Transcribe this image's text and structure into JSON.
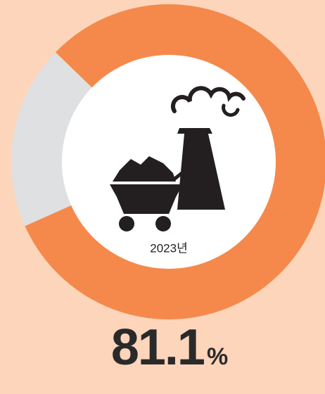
{
  "chart_data": {
    "type": "donut",
    "center_label": "2023년",
    "values": [
      81.1,
      18.9
    ],
    "value_labels": [
      "81.1%",
      null
    ],
    "colors": [
      "#f5894b",
      "#dfe0e2"
    ]
  }
}
